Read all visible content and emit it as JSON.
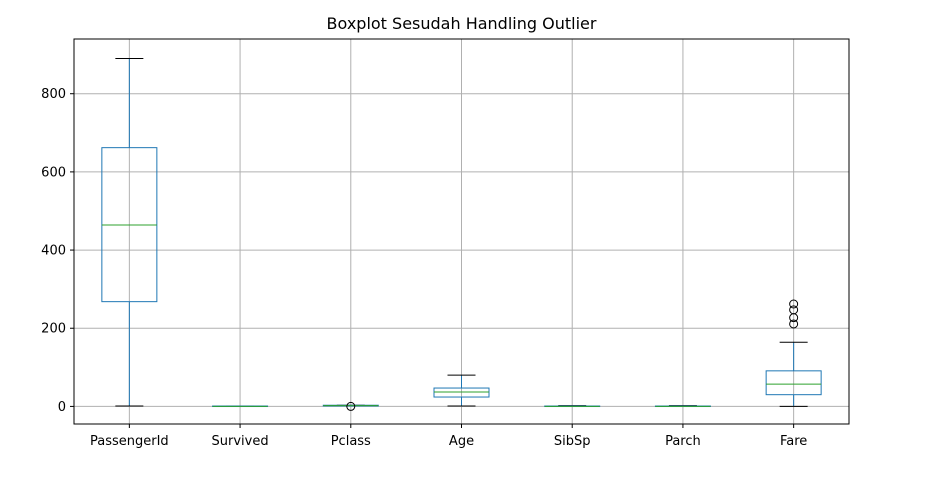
{
  "chart_data": {
    "type": "boxplot",
    "title": "Boxplot Sesudah Handling Outlier",
    "xlabel": "",
    "ylabel": "",
    "ylim": [
      -45,
      940
    ],
    "yticks": [
      0,
      200,
      400,
      600,
      800
    ],
    "grid": true,
    "colors": {
      "box": "#1f77b4",
      "median": "#2ca02c",
      "whisker_cap": "#000000",
      "grid": "#b0b0b0"
    },
    "categories": [
      "PassengerId",
      "Survived",
      "Pclass",
      "Age",
      "SibSp",
      "Parch",
      "Fare"
    ],
    "boxes": [
      {
        "label": "PassengerId",
        "whislo": 1,
        "q1": 268,
        "median": 464,
        "q3": 662,
        "whishi": 890,
        "fliers": []
      },
      {
        "label": "Survived",
        "whislo": 0,
        "q1": 0,
        "median": 0,
        "q3": 1,
        "whishi": 1,
        "fliers": []
      },
      {
        "label": "Pclass",
        "whislo": 1,
        "q1": 1,
        "median": 2,
        "q3": 3,
        "whishi": 3,
        "fliers": [
          0
        ]
      },
      {
        "label": "Age",
        "whislo": 1,
        "q1": 24,
        "median": 37,
        "q3": 47,
        "whishi": 80,
        "fliers": []
      },
      {
        "label": "SibSp",
        "whislo": 0,
        "q1": 0,
        "median": 0,
        "q3": 1,
        "whishi": 2,
        "fliers": []
      },
      {
        "label": "Parch",
        "whislo": 0,
        "q1": 0,
        "median": 0,
        "q3": 1,
        "whishi": 2,
        "fliers": []
      },
      {
        "label": "Fare",
        "whislo": 0,
        "q1": 30,
        "median": 57,
        "q3": 91,
        "whishi": 164,
        "fliers": [
          211,
          227,
          247,
          262
        ]
      }
    ]
  }
}
